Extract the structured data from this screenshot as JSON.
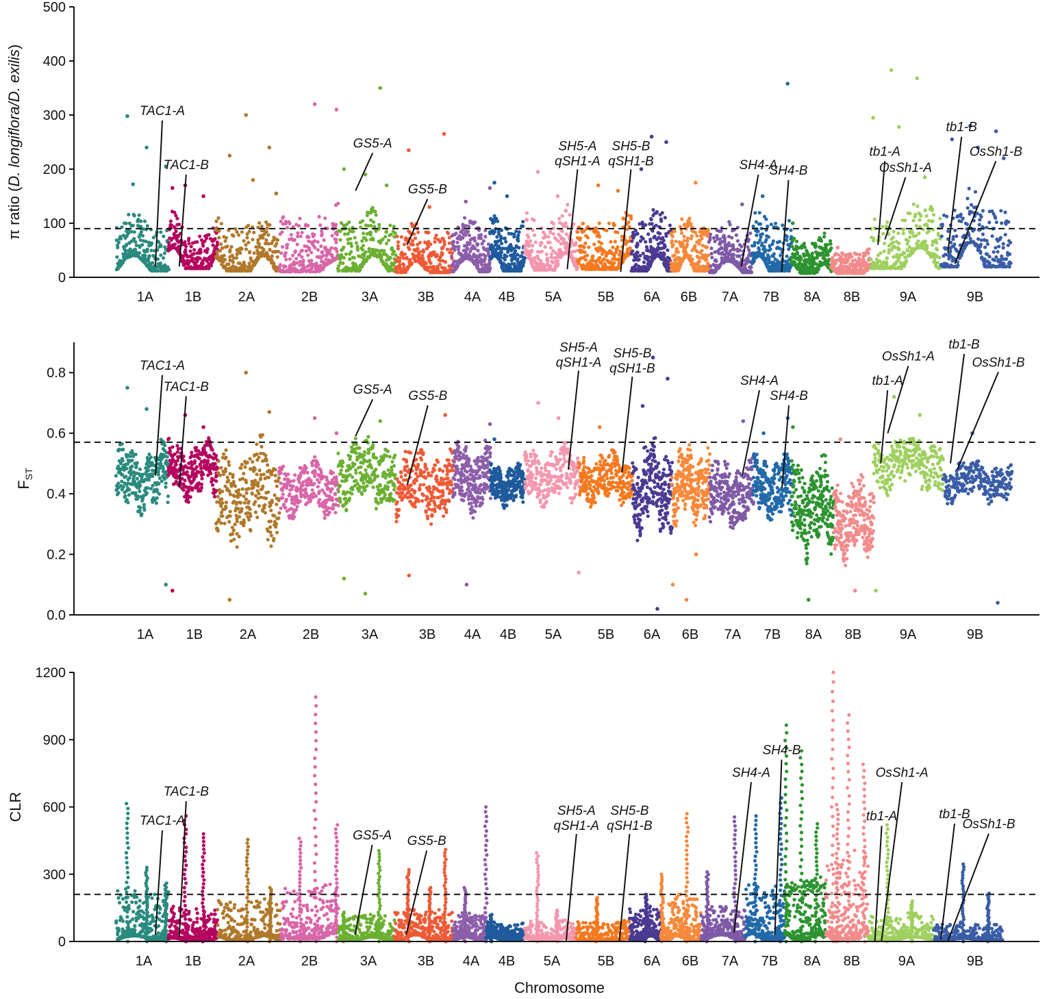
{
  "figure": {
    "x_title": "Chromosome"
  },
  "chart_data": [
    {
      "type": "scatter",
      "id": "pi",
      "ylabel_prefix": "π ratio (",
      "ylabel_italic": "D. longiflora/D. exilis",
      "ylabel_suffix": ")",
      "ylim": [
        0,
        500
      ],
      "yticks": [
        0,
        100,
        200,
        300,
        400,
        500
      ],
      "threshold": 90,
      "chromosomes": [
        {
          "name": "1A",
          "base": 40,
          "peak": 100,
          "outliers": [
            298,
            240,
            205,
            172
          ]
        },
        {
          "name": "1B",
          "base": 55,
          "peak": 95,
          "outliers": [
            170,
            150,
            165
          ]
        },
        {
          "name": "2A",
          "base": 40,
          "peak": 105,
          "outliers": [
            300,
            240,
            225,
            180,
            155
          ]
        },
        {
          "name": "2B",
          "base": 35,
          "peak": 120,
          "outliers": [
            320,
            310
          ]
        },
        {
          "name": "3A",
          "base": 40,
          "peak": 110,
          "outliers": [
            350,
            200,
            190,
            170
          ]
        },
        {
          "name": "3B",
          "base": 30,
          "peak": 90,
          "outliers": [
            265,
            235,
            130
          ]
        },
        {
          "name": "4A",
          "base": 35,
          "peak": 95,
          "outliers": [
            165,
            140
          ]
        },
        {
          "name": "4B",
          "base": 40,
          "peak": 100,
          "outliers": [
            175,
            150
          ]
        },
        {
          "name": "5A",
          "base": 45,
          "peak": 115,
          "outliers": [
            195,
            150
          ]
        },
        {
          "name": "5B",
          "base": 50,
          "peak": 110,
          "outliers": [
            170,
            160
          ]
        },
        {
          "name": "6A",
          "base": 40,
          "peak": 110,
          "outliers": [
            260,
            250,
            200
          ]
        },
        {
          "name": "6B",
          "base": 40,
          "peak": 100,
          "outliers": [
            175
          ]
        },
        {
          "name": "7A",
          "base": 30,
          "peak": 90,
          "outliers": [
            135
          ]
        },
        {
          "name": "7B",
          "base": 40,
          "peak": 110,
          "outliers": [
            358,
            150
          ]
        },
        {
          "name": "8A",
          "base": 25,
          "peak": 70,
          "outliers": [
            100
          ]
        },
        {
          "name": "8B",
          "base": 25,
          "peak": 50,
          "outliers": [
            55
          ]
        },
        {
          "name": "9A",
          "base": 55,
          "peak": 120,
          "outliers": [
            383,
            368,
            295,
            278,
            185
          ]
        },
        {
          "name": "9B",
          "base": 65,
          "peak": 140,
          "outliers": [
            280,
            270,
            255,
            240,
            220
          ]
        }
      ],
      "genes": [
        {
          "name": "TAC1-A",
          "label_y": 300,
          "target_chrom": "1A",
          "target_y": 20
        },
        {
          "name": "TAC1-B",
          "label_y": 200,
          "target_chrom": "1B",
          "target_y": 20
        },
        {
          "name": "GS5-A",
          "label_y": 240,
          "target_chrom": "3A",
          "target_y": 160
        },
        {
          "name": "GS5-B",
          "label_y": 155,
          "target_chrom": "3B",
          "target_y": 60
        },
        {
          "name": "SH5-A",
          "line2": "qSH1-A",
          "label_y": 235,
          "target_chrom": "5A",
          "target_y": 15
        },
        {
          "name": "SH5-B",
          "line2": "qSH1-B",
          "label_y": 235,
          "target_chrom": "5B",
          "target_y": 10
        },
        {
          "name": "SH4-A",
          "label_y": 200,
          "target_chrom": "7A",
          "target_y": 20
        },
        {
          "name": "SH4-B",
          "label_y": 190,
          "target_chrom": "7B",
          "target_y": 10
        },
        {
          "name": "tb1-A",
          "label_y": 225,
          "target_chrom": "9A",
          "target_y": 60
        },
        {
          "name": "OsSh1-A",
          "label_y": 195,
          "target_chrom": "9A",
          "target_y": 70
        },
        {
          "name": "tb1-B",
          "label_y": 270,
          "target_chrom": "9B",
          "target_y": 45
        },
        {
          "name": "OsSh1-B",
          "label_y": 225,
          "target_chrom": "9B",
          "target_y": 25
        }
      ]
    },
    {
      "type": "scatter",
      "id": "fst",
      "ylabel_main": "F",
      "ylabel_sub": "ST",
      "ylim": [
        0,
        0.9
      ],
      "yticks": [
        0.0,
        0.2,
        0.4,
        0.6,
        0.8
      ],
      "threshold": 0.57,
      "chromosomes": [
        {
          "name": "1A",
          "base": 0.45,
          "spread": 0.12,
          "outliers": [
            0.75,
            0.68,
            0.1
          ]
        },
        {
          "name": "1B",
          "base": 0.48,
          "spread": 0.1,
          "outliers": [
            0.66,
            0.62,
            0.08
          ]
        },
        {
          "name": "2A",
          "base": 0.4,
          "spread": 0.18,
          "outliers": [
            0.8,
            0.67,
            0.05
          ]
        },
        {
          "name": "2B",
          "base": 0.42,
          "spread": 0.1,
          "outliers": [
            0.65,
            0.6
          ]
        },
        {
          "name": "3A",
          "base": 0.47,
          "spread": 0.12,
          "outliers": [
            0.64,
            0.12,
            0.07
          ]
        },
        {
          "name": "3B",
          "base": 0.43,
          "spread": 0.12,
          "outliers": [
            0.66,
            0.13
          ]
        },
        {
          "name": "4A",
          "base": 0.45,
          "spread": 0.12,
          "outliers": [
            0.63,
            0.1
          ]
        },
        {
          "name": "4B",
          "base": 0.43,
          "spread": 0.07,
          "outliers": [
            0.58
          ]
        },
        {
          "name": "5A",
          "base": 0.46,
          "spread": 0.1,
          "outliers": [
            0.7,
            0.65,
            0.14
          ]
        },
        {
          "name": "5B",
          "base": 0.45,
          "spread": 0.09,
          "outliers": [
            0.62
          ]
        },
        {
          "name": "6A",
          "base": 0.42,
          "spread": 0.16,
          "outliers": [
            0.85,
            0.78,
            0.69,
            0.02
          ]
        },
        {
          "name": "6B",
          "base": 0.43,
          "spread": 0.13,
          "outliers": [
            0.2,
            0.1,
            0.05
          ]
        },
        {
          "name": "7A",
          "base": 0.4,
          "spread": 0.12,
          "outliers": [
            0.64
          ]
        },
        {
          "name": "7B",
          "base": 0.42,
          "spread": 0.11,
          "outliers": [
            0.65,
            0.6
          ]
        },
        {
          "name": "8A",
          "base": 0.36,
          "spread": 0.17,
          "outliers": [
            0.62,
            0.05
          ]
        },
        {
          "name": "8B",
          "base": 0.32,
          "spread": 0.14,
          "outliers": [
            0.58,
            0.08
          ]
        },
        {
          "name": "9A",
          "base": 0.5,
          "spread": 0.1,
          "outliers": [
            0.72,
            0.66,
            0.08
          ]
        },
        {
          "name": "9B",
          "base": 0.44,
          "spread": 0.07,
          "outliers": [
            0.6,
            0.04
          ]
        }
      ],
      "genes": [
        {
          "name": "TAC1-A",
          "label_y": 0.81,
          "target_chrom": "1A",
          "target_y": 0.46
        },
        {
          "name": "TAC1-B",
          "label_y": 0.74,
          "target_chrom": "1B",
          "target_y": 0.42
        },
        {
          "name": "GS5-A",
          "label_y": 0.73,
          "target_chrom": "3A",
          "target_y": 0.59
        },
        {
          "name": "GS5-B",
          "label_y": 0.71,
          "target_chrom": "3B",
          "target_y": 0.43
        },
        {
          "name": "SH5-A",
          "line2": "qSH1-A",
          "label_y": 0.87,
          "target_chrom": "5A",
          "target_y": 0.48
        },
        {
          "name": "SH5-B",
          "line2": "qSH1-B",
          "label_y": 0.85,
          "target_chrom": "5B",
          "target_y": 0.47
        },
        {
          "name": "SH4-A",
          "label_y": 0.76,
          "target_chrom": "7A",
          "target_y": 0.46
        },
        {
          "name": "SH4-B",
          "label_y": 0.71,
          "target_chrom": "7B",
          "target_y": 0.42
        },
        {
          "name": "tb1-A",
          "label_y": 0.76,
          "target_chrom": "9A",
          "target_y": 0.5
        },
        {
          "name": "OsSh1-A",
          "label_y": 0.84,
          "target_chrom": "9A",
          "target_y": 0.6
        },
        {
          "name": "tb1-B",
          "label_y": 0.88,
          "target_chrom": "9B",
          "target_y": 0.5
        },
        {
          "name": "OsSh1-B",
          "label_y": 0.82,
          "target_chrom": "9B",
          "target_y": 0.48
        }
      ]
    },
    {
      "type": "scatter",
      "id": "clr",
      "ylabel": "CLR",
      "ylim": [
        0,
        1200
      ],
      "yticks": [
        0,
        300,
        600,
        900,
        1200
      ],
      "threshold": 210,
      "chromosomes": [
        {
          "name": "1A",
          "base": 25,
          "peak": 230,
          "spikes": [
            615,
            330,
            260
          ]
        },
        {
          "name": "1B",
          "base": 15,
          "peak": 150,
          "spikes": [
            560,
            480
          ]
        },
        {
          "name": "2A",
          "base": 25,
          "peak": 180,
          "spikes": [
            455,
            240
          ]
        },
        {
          "name": "2B",
          "base": 40,
          "peak": 250,
          "spikes": [
            1090,
            520,
            460
          ]
        },
        {
          "name": "3A",
          "base": 20,
          "peak": 120,
          "spikes": [
            405,
            130
          ]
        },
        {
          "name": "3B",
          "base": 30,
          "peak": 150,
          "spikes": [
            410,
            320,
            240
          ]
        },
        {
          "name": "4A",
          "base": 20,
          "peak": 120,
          "spikes": [
            600,
            240
          ]
        },
        {
          "name": "4B",
          "base": 20,
          "peak": 80,
          "spikes": [
            120
          ]
        },
        {
          "name": "5A",
          "base": 15,
          "peak": 90,
          "spikes": [
            395,
            140
          ]
        },
        {
          "name": "5B",
          "base": 15,
          "peak": 90,
          "spikes": [
            195
          ]
        },
        {
          "name": "6A",
          "base": 25,
          "peak": 150,
          "spikes": [
            210
          ]
        },
        {
          "name": "6B",
          "base": 25,
          "peak": 200,
          "spikes": [
            570,
            300
          ]
        },
        {
          "name": "7A",
          "base": 30,
          "peak": 150,
          "spikes": [
            555,
            310
          ]
        },
        {
          "name": "7B",
          "base": 35,
          "peak": 260,
          "spikes": [
            640,
            560
          ]
        },
        {
          "name": "8A",
          "base": 30,
          "peak": 280,
          "spikes": [
            965,
            850,
            525
          ]
        },
        {
          "name": "8B",
          "base": 40,
          "peak": 420,
          "spikes": [
            1200,
            1010,
            790,
            610
          ]
        },
        {
          "name": "9A",
          "base": 20,
          "peak": 120,
          "spikes": [
            520,
            180
          ]
        },
        {
          "name": "9B",
          "base": 15,
          "peak": 80,
          "spikes": [
            345,
            215
          ]
        }
      ],
      "genes": [
        {
          "name": "TAC1-A",
          "label_y": 520,
          "target_chrom": "1A",
          "target_y": 30
        },
        {
          "name": "TAC1-B",
          "label_y": 650,
          "target_chrom": "1B",
          "target_y": 20
        },
        {
          "name": "GS5-A",
          "label_y": 455,
          "target_chrom": "3A",
          "target_y": 30
        },
        {
          "name": "GS5-B",
          "label_y": 430,
          "target_chrom": "3B",
          "target_y": 30
        },
        {
          "name": "SH5-A",
          "line2": "qSH1-A",
          "label_y": 565,
          "target_chrom": "5A",
          "target_y": 0
        },
        {
          "name": "SH5-B",
          "line2": "qSH1-B",
          "label_y": 565,
          "target_chrom": "5B",
          "target_y": 0
        },
        {
          "name": "SH4-A",
          "label_y": 735,
          "target_chrom": "7A",
          "target_y": 40
        },
        {
          "name": "SH4-B",
          "label_y": 835,
          "target_chrom": "7B",
          "target_y": 30
        },
        {
          "name": "tb1-A",
          "label_y": 540,
          "target_chrom": "9A",
          "target_y": 0
        },
        {
          "name": "OsSh1-A",
          "label_y": 735,
          "target_chrom": "9A",
          "target_y": 0
        },
        {
          "name": "tb1-B",
          "label_y": 550,
          "target_chrom": "9B",
          "target_y": 10
        },
        {
          "name": "OsSh1-B",
          "label_y": 505,
          "target_chrom": "9B",
          "target_y": 0
        }
      ]
    }
  ],
  "chromosome_colors": {
    "1A": "#2a8a7e",
    "1B": "#b5045f",
    "2A": "#b0782a",
    "2B": "#d866a8",
    "3A": "#6cb033",
    "3B": "#ee5a36",
    "4A": "#8d5ea9",
    "4B": "#1e5a9c",
    "5A": "#f497ad",
    "5B": "#f47920",
    "6A": "#4b3a92",
    "6B": "#f7893a",
    "7A": "#7f5aa6",
    "7B": "#2369a8",
    "8A": "#2d9330",
    "8B": "#f28b8b",
    "9A": "#9ed05f",
    "9B": "#3a5da6"
  }
}
